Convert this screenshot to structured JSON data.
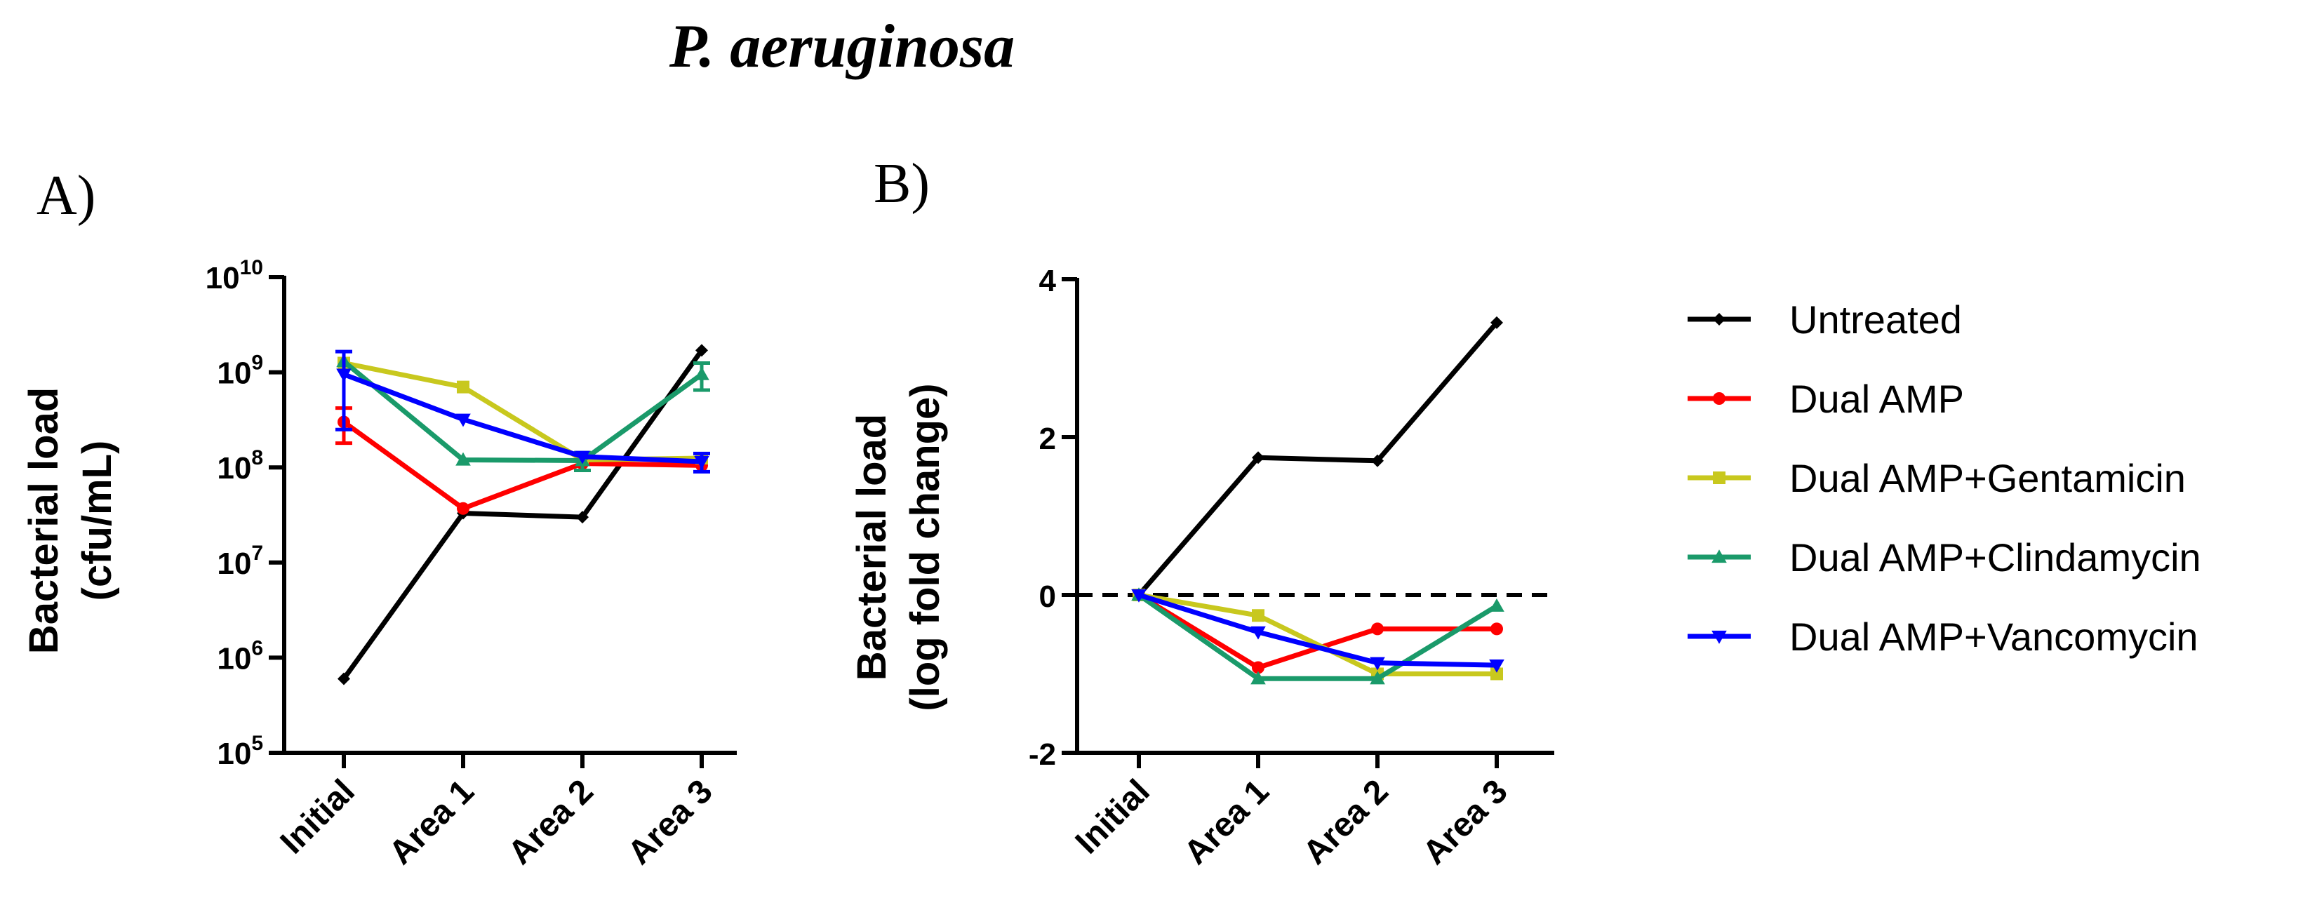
{
  "figure_title": "P. aeruginosa",
  "chart_data": [
    {
      "panel": "A)",
      "type": "line",
      "ylabel_line1": "Bacterial load",
      "ylabel_line2": "(cfu/mL)",
      "yscale": "log",
      "ylim": [
        100000,
        10000000000
      ],
      "yticks": [
        {
          "base": "10",
          "exp": "10",
          "value": 10000000000
        },
        {
          "base": "10",
          "exp": "9",
          "value": 1000000000
        },
        {
          "base": "10",
          "exp": "8",
          "value": 100000000
        },
        {
          "base": "10",
          "exp": "7",
          "value": 10000000
        },
        {
          "base": "10",
          "exp": "6",
          "value": 1000000
        },
        {
          "base": "10",
          "exp": "5",
          "value": 100000
        }
      ],
      "categories": [
        "Initial",
        "Area 1",
        "Area 2",
        "Area 3"
      ],
      "series": [
        {
          "name": "Untreated",
          "color": "#000000",
          "marker": "diamond",
          "values": [
            600000,
            33000000,
            30000000,
            1700000000
          ],
          "err": [
            0,
            0,
            0,
            0
          ]
        },
        {
          "name": "Dual AMP",
          "color": "#ff0000",
          "marker": "circle",
          "values": [
            300000000,
            37000000,
            110000000,
            105000000
          ],
          "err": [
            120000000,
            0,
            0,
            0
          ]
        },
        {
          "name": "Dual AMP+Gentamicin",
          "color": "#c8c81e",
          "marker": "square",
          "values": [
            1250000000,
            700000000,
            120000000,
            125000000
          ],
          "err": [
            0,
            0,
            0,
            0
          ]
        },
        {
          "name": "Dual AMP+Clindamycin",
          "color": "#1a9a6a",
          "marker": "triangle-up",
          "values": [
            1300000000,
            120000000,
            118000000,
            950000000
          ],
          "err": [
            0,
            0,
            25000000,
            300000000
          ]
        },
        {
          "name": "Dual AMP+Vancomycin",
          "color": "#0000ff",
          "marker": "triangle-down",
          "values": [
            950000000,
            320000000,
            130000000,
            115000000
          ],
          "err": [
            700000000,
            0,
            0,
            25000000
          ]
        }
      ]
    },
    {
      "panel": "B)",
      "type": "line",
      "ylabel_line1": "Bacterial load",
      "ylabel_line2": "(log fold change)",
      "yscale": "linear",
      "ylim": [
        -2,
        4
      ],
      "yticks": [
        4,
        2,
        0,
        -2
      ],
      "reference_line": 0,
      "categories": [
        "Initial",
        "Area 1",
        "Area 2",
        "Area 3"
      ],
      "series": [
        {
          "name": "Untreated",
          "color": "#000000",
          "marker": "diamond",
          "values": [
            0,
            1.74,
            1.7,
            3.45
          ]
        },
        {
          "name": "Dual AMP",
          "color": "#ff0000",
          "marker": "circle",
          "values": [
            0,
            -0.92,
            -0.43,
            -0.43
          ]
        },
        {
          "name": "Dual AMP+Gentamicin",
          "color": "#c8c81e",
          "marker": "square",
          "values": [
            0,
            -0.26,
            -1.0,
            -1.0
          ]
        },
        {
          "name": "Dual AMP+Clindamycin",
          "color": "#1a9a6a",
          "marker": "triangle-up",
          "values": [
            0,
            -1.06,
            -1.06,
            -0.14
          ]
        },
        {
          "name": "Dual AMP+Vancomycin",
          "color": "#0000ff",
          "marker": "triangle-down",
          "values": [
            0,
            -0.47,
            -0.86,
            -0.89
          ]
        }
      ]
    }
  ],
  "legend": [
    {
      "label": "Untreated",
      "color": "#000000",
      "marker": "diamond"
    },
    {
      "label": "Dual AMP",
      "color": "#ff0000",
      "marker": "circle"
    },
    {
      "label": "Dual AMP+Gentamicin",
      "color": "#c8c81e",
      "marker": "square"
    },
    {
      "label": "Dual AMP+Clindamycin",
      "color": "#1a9a6a",
      "marker": "triangle-up"
    },
    {
      "label": "Dual AMP+Vancomycin",
      "color": "#0000ff",
      "marker": "triangle-down"
    }
  ]
}
